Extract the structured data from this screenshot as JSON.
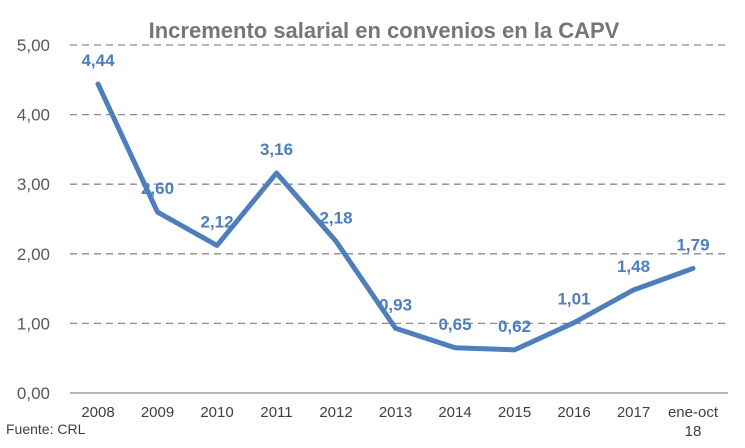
{
  "chart_data": {
    "type": "line",
    "title": "Incremento salarial en convenios en la CAPV",
    "categories": [
      "2008",
      "2009",
      "2010",
      "2011",
      "2012",
      "2013",
      "2014",
      "2015",
      "2016",
      "2017",
      [
        "ene-oct",
        "18"
      ]
    ],
    "series": [
      {
        "values": [
          4.44,
          2.6,
          2.12,
          3.16,
          2.18,
          0.93,
          0.65,
          0.62,
          1.01,
          1.48,
          1.79
        ],
        "data_labels": [
          "4,44",
          "2,60",
          "2,12",
          "3,16",
          "2,18",
          "0,93",
          "0,65",
          "0,62",
          "1,01",
          "1,48",
          "1,79"
        ],
        "color": "#4E7FBB"
      }
    ],
    "ylim": [
      0,
      5
    ],
    "yticks": [
      "0,00",
      "1,00",
      "2,00",
      "3,00",
      "4,00",
      "5,00"
    ],
    "grid": true,
    "label_color": "#4E7FBB"
  },
  "footer": {
    "source": "Fuente: CRL"
  }
}
